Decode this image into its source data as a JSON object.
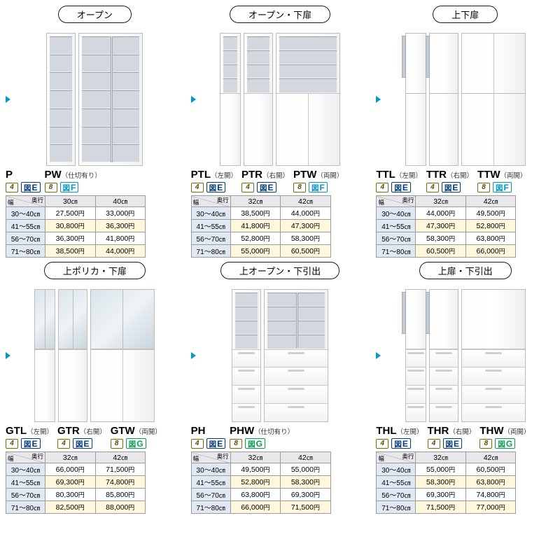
{
  "labels": {
    "depth": "奥行",
    "width": "幅",
    "yen": "円",
    "cm": "㎝",
    "fig_prefix": "図"
  },
  "colors": {
    "badge_E": "#003a80",
    "badge_F": "#0097c4",
    "badge_G": "#00a04a",
    "alt_row": "#fff7dc",
    "row_head": "#e0e8f3"
  },
  "widths_rows": [
    "30〜40",
    "41〜55",
    "56〜70",
    "71〜80"
  ],
  "cells": [
    {
      "category": "オープン",
      "codes": [
        {
          "code": "P",
          "sub": "",
          "num": "4",
          "fig": "E"
        },
        {
          "code": "PW",
          "sub": "（仕切有り）",
          "num": "8",
          "fig": "F"
        }
      ],
      "cabs": [
        {
          "w": "w-mid",
          "parts": [
            "shelves"
          ]
        },
        {
          "w": "w-wide",
          "parts": [
            "shelves",
            "splitV"
          ]
        }
      ],
      "depth_cols": [
        "30",
        "40"
      ],
      "prices": [
        [
          "27,500",
          "33,000"
        ],
        [
          "30,800",
          "36,300"
        ],
        [
          "36,300",
          "41,800"
        ],
        [
          "38,500",
          "44,000"
        ]
      ]
    },
    {
      "category": "オープン・下扉",
      "codes": [
        {
          "code": "PTL",
          "sub": "（左開）",
          "num": "4",
          "fig": "E"
        },
        {
          "code": "PTR",
          "sub": "（右開）",
          "num": "4",
          "fig": "E"
        },
        {
          "code": "PTW",
          "sub": "（両開）",
          "num": "8",
          "fig": "F"
        }
      ],
      "cabs": [
        {
          "w": "w-narrow",
          "parts": [
            "shelves-top",
            "lower-door"
          ]
        },
        {
          "w": "w-mid",
          "parts": [
            "shelves-top",
            "lower-door"
          ]
        },
        {
          "w": "w-wide",
          "parts": [
            "shelves-top",
            "lower-door-split"
          ]
        }
      ],
      "depth_cols": [
        "32",
        "42"
      ],
      "prices": [
        [
          "38,500",
          "44,000"
        ],
        [
          "41,800",
          "47,300"
        ],
        [
          "52,800",
          "58,300"
        ],
        [
          "55,000",
          "60,500"
        ]
      ]
    },
    {
      "category": "上下扉",
      "codes": [
        {
          "code": "TTL",
          "sub": "（左開）",
          "num": "4",
          "fig": "E"
        },
        {
          "code": "TTR",
          "sub": "（右開）",
          "num": "4",
          "fig": "E"
        },
        {
          "code": "TTW",
          "sub": "（両開）",
          "num": "8",
          "fig": "F"
        }
      ],
      "cabs": [
        {
          "w": "w-narrow",
          "parts": [
            "full-door",
            "mid-split",
            "tiny-shelf"
          ]
        },
        {
          "w": "w-mid",
          "parts": [
            "full-door",
            "mid-split",
            "tiny-shelf"
          ]
        },
        {
          "w": "w-wide",
          "parts": [
            "full-door-split",
            "mid-split"
          ]
        }
      ],
      "depth_cols": [
        "32",
        "42"
      ],
      "prices": [
        [
          "44,000",
          "49,500"
        ],
        [
          "47,300",
          "52,800"
        ],
        [
          "58,300",
          "63,800"
        ],
        [
          "60,500",
          "66,000"
        ]
      ]
    },
    {
      "category": "上ポリカ・下扉",
      "codes": [
        {
          "code": "GTL",
          "sub": "（左開）",
          "num": "4",
          "fig": "E"
        },
        {
          "code": "GTR",
          "sub": "（右開）",
          "num": "4",
          "fig": "E"
        },
        {
          "code": "GTW",
          "sub": "（両開）",
          "num": "8",
          "fig": "G"
        }
      ],
      "cabs": [
        {
          "w": "w-narrow",
          "parts": [
            "glass",
            "lower-door"
          ]
        },
        {
          "w": "w-mid",
          "parts": [
            "glass",
            "lower-door"
          ]
        },
        {
          "w": "w-wide",
          "parts": [
            "glass",
            "lower-door-split"
          ]
        }
      ],
      "depth_cols": [
        "32",
        "42"
      ],
      "prices": [
        [
          "66,000",
          "71,500"
        ],
        [
          "69,300",
          "74,800"
        ],
        [
          "80,300",
          "85,800"
        ],
        [
          "82,500",
          "88,000"
        ]
      ]
    },
    {
      "category": "上オープン・下引出",
      "codes": [
        {
          "code": "PH",
          "sub": "",
          "num": "4",
          "fig": "E"
        },
        {
          "code": "PHW",
          "sub": "（仕切有り）",
          "num": "8",
          "fig": "G"
        }
      ],
      "cabs": [
        {
          "w": "w-mid",
          "parts": [
            "shelves-top",
            "drawers"
          ]
        },
        {
          "w": "w-wide",
          "parts": [
            "shelves-top",
            "drawers",
            "splitV-top"
          ]
        }
      ],
      "depth_cols": [
        "32",
        "42"
      ],
      "prices": [
        [
          "49,500",
          "55,000"
        ],
        [
          "52,800",
          "58,300"
        ],
        [
          "63,800",
          "69,300"
        ],
        [
          "66,000",
          "71,500"
        ]
      ]
    },
    {
      "category": "上扉・下引出",
      "codes": [
        {
          "code": "THL",
          "sub": "（左開）",
          "num": "4",
          "fig": "E"
        },
        {
          "code": "THR",
          "sub": "（右開）",
          "num": "4",
          "fig": "E"
        },
        {
          "code": "THW",
          "sub": "（両開）",
          "num": "8",
          "fig": "G"
        }
      ],
      "cabs": [
        {
          "w": "w-narrow",
          "parts": [
            "upper-door",
            "drawers",
            "tiny-shelf"
          ]
        },
        {
          "w": "w-mid",
          "parts": [
            "upper-door",
            "drawers",
            "tiny-shelf"
          ]
        },
        {
          "w": "w-wide",
          "parts": [
            "upper-door",
            "drawers"
          ]
        }
      ],
      "depth_cols": [
        "32",
        "42"
      ],
      "prices": [
        [
          "55,000",
          "60,500"
        ],
        [
          "58,300",
          "63,800"
        ],
        [
          "69,300",
          "74,800"
        ],
        [
          "71,500",
          "77,000"
        ]
      ]
    }
  ]
}
